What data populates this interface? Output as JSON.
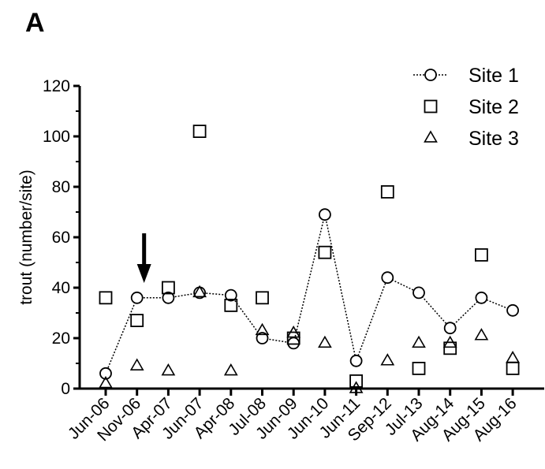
{
  "panel_label": "A",
  "chart_data": {
    "type": "scatter",
    "title": "",
    "xlabel": "",
    "ylabel": "trout (number/site)",
    "ylim": [
      0,
      120
    ],
    "yticks": [
      0,
      20,
      40,
      60,
      80,
      100,
      120
    ],
    "categories": [
      "Jun-06",
      "Nov-06",
      "Apr-07",
      "Jun-07",
      "Apr-08",
      "Jul-08",
      "Jun-09",
      "Jun-10",
      "Jun-11",
      "Sep-12",
      "Jul-13",
      "Aug-14",
      "Aug-15",
      "Aug-16"
    ],
    "series": [
      {
        "name": "Site 1",
        "marker": "circle",
        "line": "dotted",
        "values": [
          6,
          36,
          36,
          38,
          37,
          20,
          18,
          69,
          11,
          44,
          38,
          24,
          36,
          31
        ]
      },
      {
        "name": "Site 2",
        "marker": "square",
        "line": "none",
        "values": [
          36,
          27,
          40,
          102,
          33,
          36,
          20,
          54,
          3,
          78,
          8,
          16,
          53,
          8
        ]
      },
      {
        "name": "Site 3",
        "marker": "triangle",
        "line": "none",
        "values": [
          2,
          9,
          7,
          38,
          7,
          23,
          22,
          18,
          0,
          11,
          18,
          18,
          21,
          12
        ]
      }
    ],
    "annotations": [
      {
        "type": "arrow",
        "category": "Nov-06",
        "direction": "down"
      }
    ],
    "legend": "top-right",
    "grid": false
  }
}
